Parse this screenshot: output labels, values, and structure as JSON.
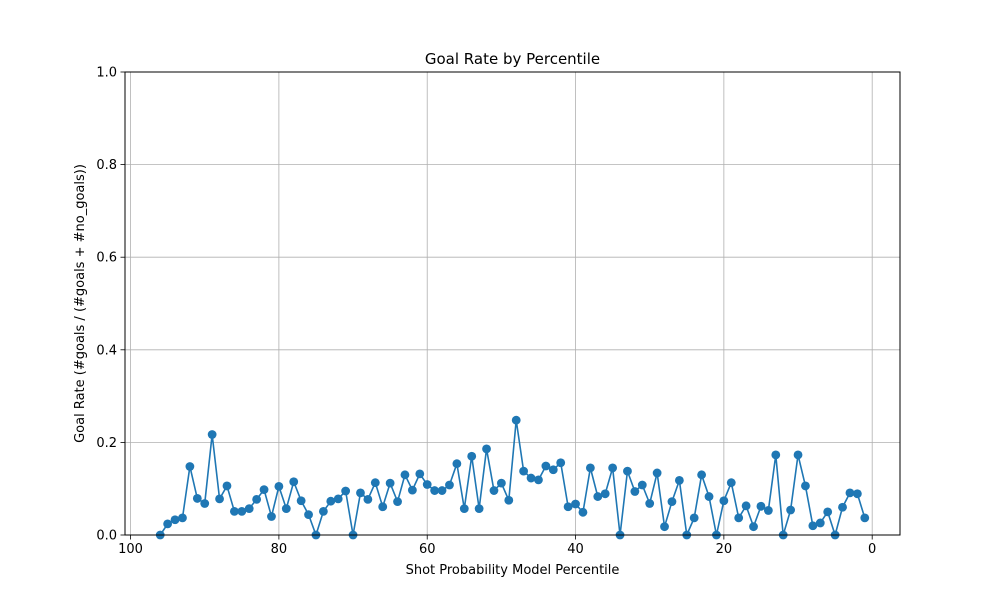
{
  "chart_data": {
    "type": "line",
    "title": "Goal Rate by Percentile",
    "xlabel": "Shot Probability Model Percentile",
    "ylabel": "Goal Rate (#goals / (#goals + #no_goals))",
    "xlim": [
      100,
      0
    ],
    "ylim": [
      0,
      1.0
    ],
    "x_inverted": true,
    "grid": true,
    "marker": "circle",
    "color": "#1f77b4",
    "xticks": [
      100,
      80,
      60,
      40,
      20,
      0
    ],
    "xtick_labels": [
      "100",
      "80",
      "60",
      "40",
      "20",
      "0"
    ],
    "yticks": [
      0.0,
      0.2,
      0.4,
      0.6,
      0.8,
      1.0
    ],
    "ytick_labels": [
      "0.0",
      "0.2",
      "0.4",
      "0.6",
      "0.8",
      "1.0"
    ],
    "x": [
      96,
      95,
      94,
      93,
      92,
      91,
      90,
      89,
      88,
      87,
      86,
      85,
      84,
      83,
      82,
      81,
      80,
      79,
      78,
      77,
      76,
      75,
      74,
      73,
      72,
      71,
      70,
      69,
      68,
      67,
      66,
      65,
      64,
      63,
      62,
      61,
      60,
      59,
      58,
      57,
      56,
      55,
      54,
      53,
      52,
      51,
      50,
      49,
      48,
      47,
      46,
      45,
      44,
      43,
      42,
      41,
      40,
      39,
      38,
      37,
      36,
      35,
      34,
      33,
      32,
      31,
      30,
      29,
      28,
      27,
      26,
      25,
      24,
      23,
      22,
      21,
      20,
      19,
      18,
      17,
      16,
      15,
      14,
      13,
      12,
      11,
      10,
      9,
      8,
      7,
      6,
      5,
      4,
      3,
      2,
      1
    ],
    "values": [
      0.0,
      0.024,
      0.033,
      0.037,
      0.148,
      0.079,
      0.068,
      0.217,
      0.078,
      0.106,
      0.051,
      0.051,
      0.057,
      0.077,
      0.098,
      0.04,
      0.105,
      0.057,
      0.115,
      0.074,
      0.044,
      0.0,
      0.051,
      0.073,
      0.078,
      0.095,
      0.0,
      0.091,
      0.077,
      0.113,
      0.061,
      0.112,
      0.072,
      0.13,
      0.097,
      0.132,
      0.109,
      0.096,
      0.096,
      0.108,
      0.154,
      0.057,
      0.17,
      0.057,
      0.186,
      0.096,
      0.112,
      0.075,
      0.248,
      0.138,
      0.123,
      0.119,
      0.149,
      0.141,
      0.156,
      0.061,
      0.067,
      0.049,
      0.145,
      0.083,
      0.089,
      0.145,
      0.0,
      0.138,
      0.094,
      0.108,
      0.068,
      0.134,
      0.018,
      0.072,
      0.118,
      0.0,
      0.037,
      0.13,
      0.083,
      0.0,
      0.074,
      0.113,
      0.037,
      0.063,
      0.018,
      0.062,
      0.053,
      0.173,
      0.0,
      0.054,
      0.173,
      0.106,
      0.02,
      0.026,
      0.05,
      0.0,
      0.06,
      0.091,
      0.089,
      0.037
    ]
  }
}
